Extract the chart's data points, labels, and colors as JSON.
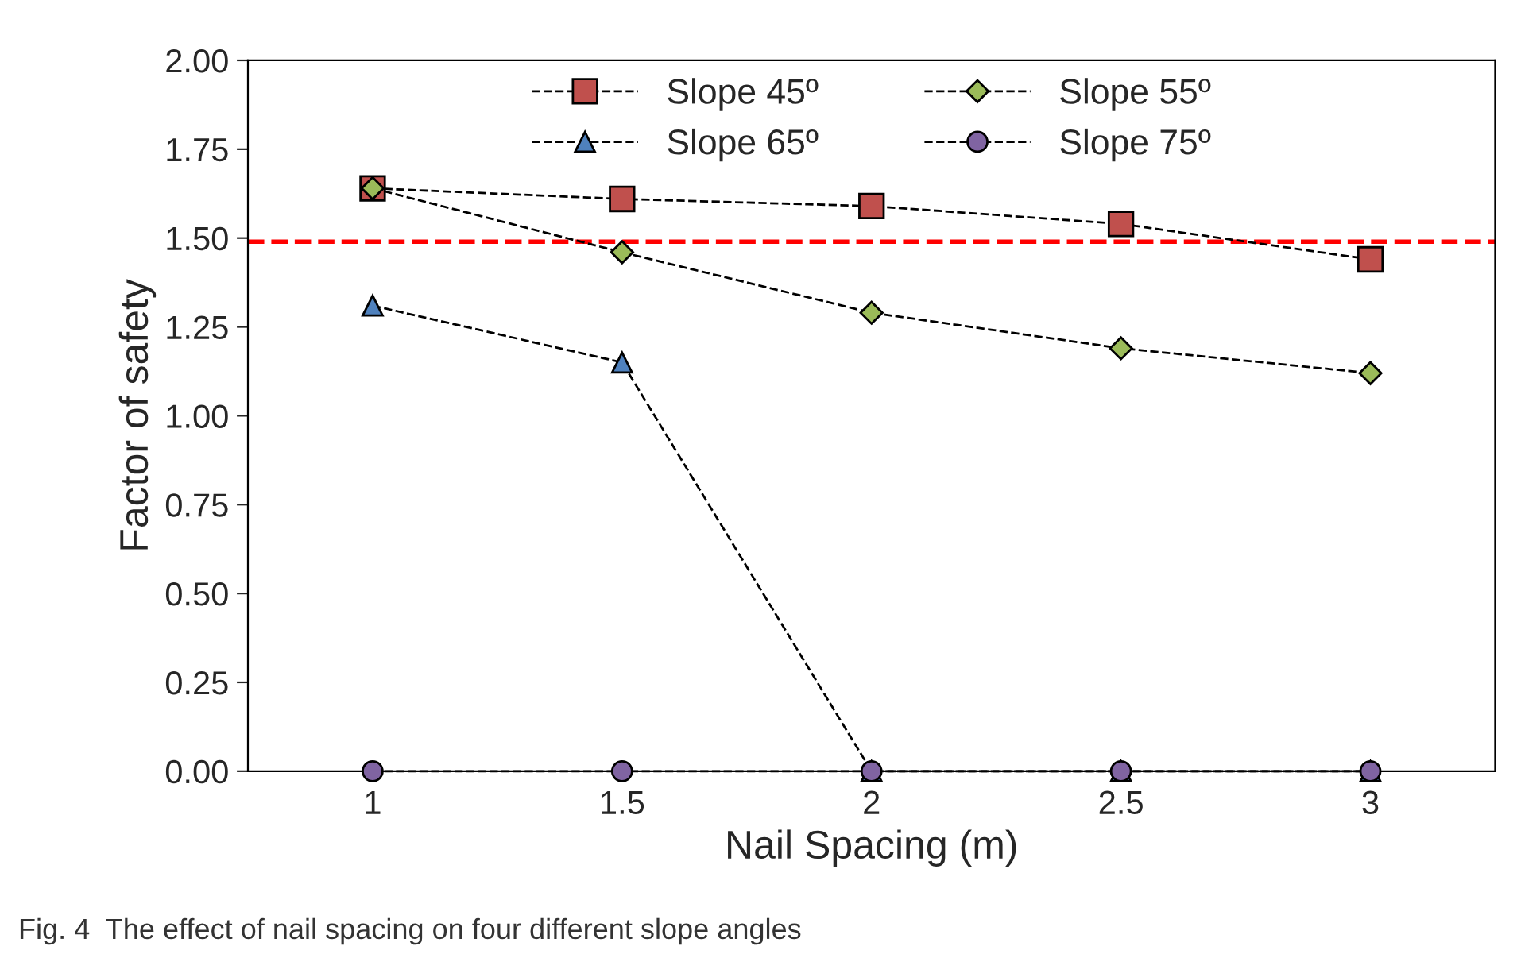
{
  "chart_data": {
    "type": "line",
    "xlabel": "Nail Spacing (m)",
    "ylabel": "Factor of safety",
    "categories": [
      "1",
      "1.5",
      "2",
      "2.5",
      "3"
    ],
    "series": [
      {
        "name": "Slope 45º",
        "color": "#c0504d",
        "marker": "square",
        "values": [
          1.64,
          1.61,
          1.59,
          1.54,
          1.44
        ]
      },
      {
        "name": "Slope 55º",
        "color": "#9bbb59",
        "marker": "diamond",
        "values": [
          1.64,
          1.46,
          1.29,
          1.19,
          1.12
        ]
      },
      {
        "name": "Slope 65º",
        "color": "#4f81bd",
        "marker": "triangle",
        "values": [
          1.31,
          1.15,
          0,
          0,
          0
        ]
      },
      {
        "name": "Slope 75º",
        "color": "#8064a2",
        "marker": "circle",
        "values": [
          0,
          0,
          0,
          0,
          0
        ]
      }
    ],
    "line_style": "dashed",
    "ylim": [
      0,
      2
    ],
    "yticks": [
      {
        "value": 0,
        "label": "0.00"
      },
      {
        "value": 0.25,
        "label": "0.25"
      },
      {
        "value": 0.5,
        "label": "0.50"
      },
      {
        "value": 0.75,
        "label": "0.75"
      },
      {
        "value": 1,
        "label": "1.00"
      },
      {
        "value": 1.25,
        "label": "1.25"
      },
      {
        "value": 1.5,
        "label": "1.50"
      },
      {
        "value": 1.75,
        "label": "1.75"
      },
      {
        "value": 2,
        "label": "2.00"
      }
    ],
    "ref_lines": [
      {
        "axis": "y",
        "value": 1.49,
        "label": null,
        "color": "#ff0000",
        "line_style": "dashed"
      }
    ],
    "grid": false,
    "legend": "top",
    "annotations": [
      "Fig. 4  The effect of nail spacing on four different slope angles"
    ]
  }
}
